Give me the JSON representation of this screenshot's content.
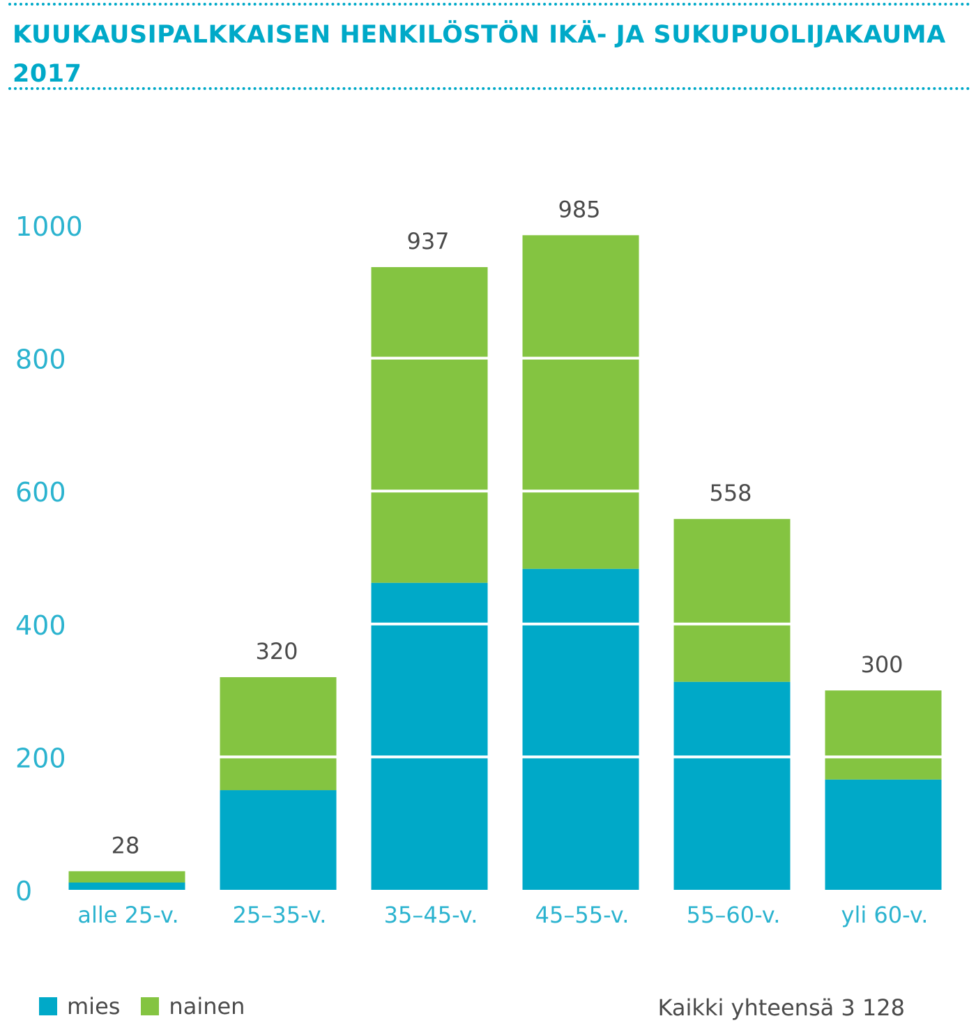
{
  "title": "KUUKAUSIPALKKAISEN HENKILÖSTÖN IKÄ- JA SUKUPUOLIJAKAUMA 2017",
  "colors": {
    "mies": "#00a9c8",
    "nainen": "#84c441",
    "axis_text": "#2bb3cf",
    "value_text": "#4a4a4a",
    "title": "#00a9c8"
  },
  "legend": {
    "mies": "mies",
    "nainen": "nainen"
  },
  "total_label": "Kaikki yhteensä 3 128",
  "chart_data": {
    "type": "bar",
    "stacked": true,
    "title": "KUUKAUSIPALKKAISEN HENKILÖSTÖN IKÄ- JA SUKUPUOLIJAKAUMA 2017",
    "categories": [
      "alle 25-v.",
      "25–35-v.",
      "35–45-v.",
      "45–55-v.",
      "55–60-v.",
      "yli 60-v."
    ],
    "series": [
      {
        "name": "mies",
        "values": [
          11,
          150,
          462,
          483,
          313,
          166
        ]
      },
      {
        "name": "nainen",
        "values": [
          17,
          170,
          475,
          502,
          245,
          134
        ]
      }
    ],
    "totals": [
      28,
      320,
      937,
      985,
      558,
      300
    ],
    "total_labels": [
      "28",
      "320",
      "937",
      "985",
      "558",
      "300"
    ],
    "yticks": [
      0,
      200,
      400,
      600,
      800,
      1000
    ],
    "ytick_labels": [
      "0",
      "200",
      "400",
      "600",
      "800",
      "1000"
    ],
    "ylim": [
      0,
      1000
    ],
    "xlabel": "",
    "ylabel": "",
    "grid": "white lines across bars at each tick",
    "legend_position": "bottom-left"
  }
}
